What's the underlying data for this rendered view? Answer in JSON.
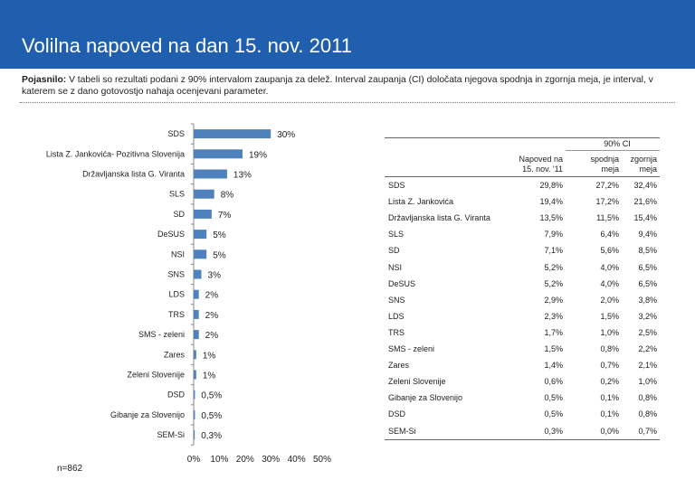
{
  "header": {
    "title": "Volilna napoved na dan 15. nov. 2011",
    "accent": "#1f5fad"
  },
  "note": {
    "label": "Pojasnilo:",
    "text": "V tabeli so rezultati podani z 90% intervalom zaupanja za delež. Interval zaupanja (CI) določata njegova spodnja in zgornja meja, je interval, v katerem se z dano gotovostjo nahaja ocenjevani parameter."
  },
  "sample_note": "n=862",
  "chart_data": [
    {
      "type": "bar",
      "orientation": "horizontal",
      "categories": [
        "SDS",
        "Lista Z. Jankovića- Pozitivna Slovenija",
        "Državljanska lista G. Viranta",
        "SLS",
        "SD",
        "DeSUS",
        "NSI",
        "SNS",
        "LDS",
        "TRS",
        "SMS - zeleni",
        "Zares",
        "Zeleni Slovenije",
        "DSD",
        "Gibanje za Slovenijo",
        "SEM-Si"
      ],
      "values": [
        30,
        19,
        13,
        8,
        7,
        5,
        5,
        3,
        2,
        2,
        2,
        1,
        1,
        0.5,
        0.5,
        0.3
      ],
      "data_labels": [
        "30%",
        "19%",
        "13%",
        "8%",
        "7%",
        "5%",
        "5%",
        "3%",
        "2%",
        "2%",
        "2%",
        "1%",
        "1%",
        "0,5%",
        "0,5%",
        "0,3%"
      ],
      "x_ticks": [
        "0%",
        "10%",
        "20%",
        "30%",
        "40%",
        "50%"
      ],
      "xlim": [
        0,
        50
      ],
      "bar_color": "#4f81bd"
    },
    {
      "type": "table",
      "group_header": "90% CI",
      "columns": [
        "",
        "Napoved na 15. nov. '11",
        "spodnja meja",
        "zgornja meja"
      ],
      "col_lines": [
        [
          "",
          ""
        ],
        [
          "Napoved na",
          "15. nov. '11"
        ],
        [
          "spodnja",
          "meja"
        ],
        [
          "zgornja",
          "meja"
        ]
      ],
      "rows": [
        [
          "SDS",
          "29,8%",
          "27,2%",
          "32,4%"
        ],
        [
          "Lista Z. Jankovića",
          "19,4%",
          "17,2%",
          "21,6%"
        ],
        [
          "Državljanska lista G. Viranta",
          "13,5%",
          "11,5%",
          "15,4%"
        ],
        [
          "SLS",
          "7,9%",
          "6,4%",
          "9,4%"
        ],
        [
          "SD",
          "7,1%",
          "5,6%",
          "8,5%"
        ],
        [
          "NSI",
          "5,2%",
          "4,0%",
          "6,5%"
        ],
        [
          "DeSUS",
          "5,2%",
          "4,0%",
          "6,5%"
        ],
        [
          "SNS",
          "2,9%",
          "2,0%",
          "3,8%"
        ],
        [
          "LDS",
          "2,3%",
          "1,5%",
          "3,2%"
        ],
        [
          "TRS",
          "1,7%",
          "1,0%",
          "2,5%"
        ],
        [
          "SMS - zeleni",
          "1,5%",
          "0,8%",
          "2,2%"
        ],
        [
          "Zares",
          "1,4%",
          "0,7%",
          "2,1%"
        ],
        [
          "Zeleni Slovenije",
          "0,6%",
          "0,2%",
          "1,0%"
        ],
        [
          "Gibanje za Slovenijo",
          "0,5%",
          "0,1%",
          "0,8%"
        ],
        [
          "DSD",
          "0,5%",
          "0,1%",
          "0,8%"
        ],
        [
          "SEM-Si",
          "0,3%",
          "0,0%",
          "0,7%"
        ]
      ]
    }
  ]
}
